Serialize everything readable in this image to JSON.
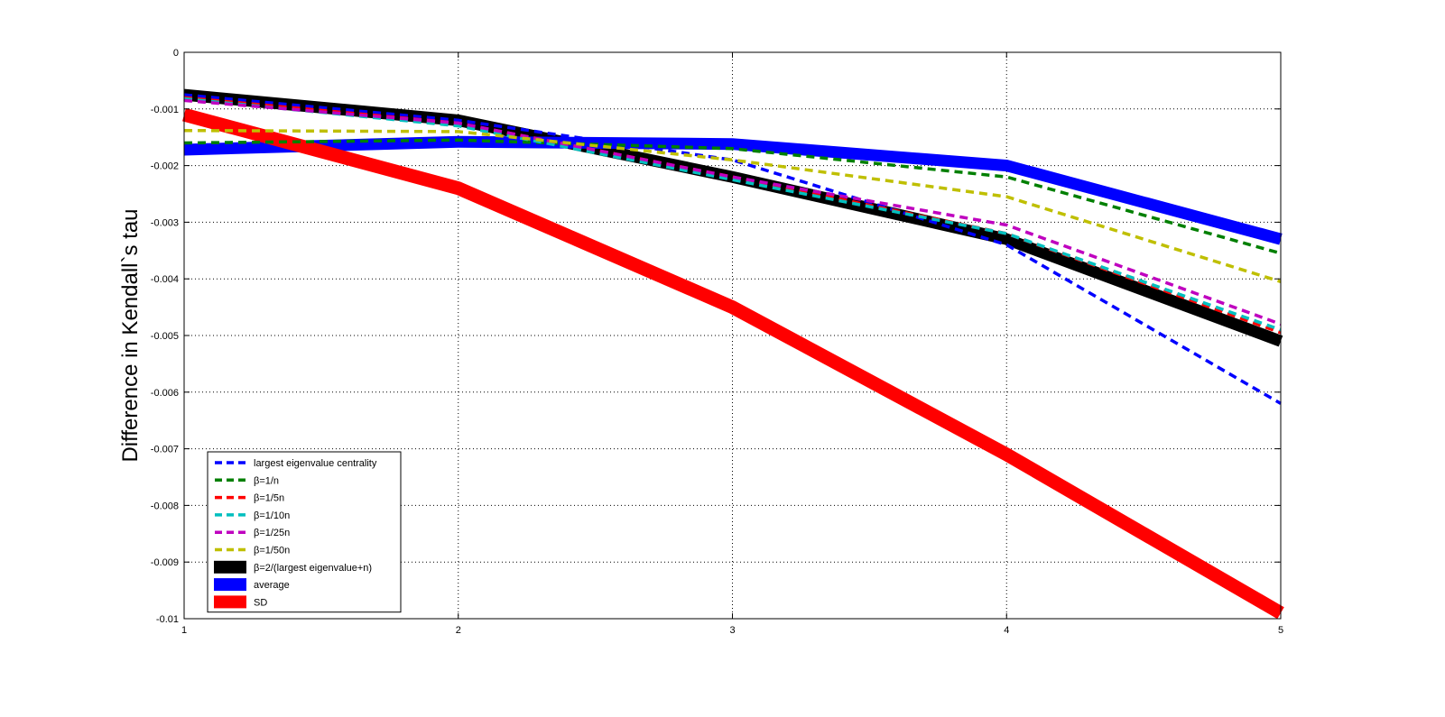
{
  "chart_data": {
    "type": "line",
    "title": "",
    "xlabel": "",
    "ylabel": "Difference in Kendall`s tau",
    "xlim": [
      1,
      5
    ],
    "ylim": [
      -0.01,
      0
    ],
    "grid": true,
    "legend_position": "bottom-left",
    "x": [
      1,
      2,
      3,
      4,
      5
    ],
    "x_ticks": [
      "1",
      "2",
      "3",
      "4",
      "5"
    ],
    "y_ticks": [
      "0",
      "-0.001",
      "-0.002",
      "-0.003",
      "-0.004",
      "-0.005",
      "-0.006",
      "-0.007",
      "-0.008",
      "-0.009",
      "-0.01"
    ],
    "y_tick_values": [
      0,
      -0.001,
      -0.002,
      -0.003,
      -0.004,
      -0.005,
      -0.006,
      -0.007,
      -0.008,
      -0.009,
      -0.01
    ],
    "series": [
      {
        "name": "largest eigenvalue centrality",
        "values": [
          -0.00075,
          -0.0012,
          -0.0019,
          -0.0034,
          -0.0062
        ],
        "color": "#0000ff",
        "style": "dashed"
      },
      {
        "name": "β=1/n",
        "values": [
          -0.0016,
          -0.00155,
          -0.0017,
          -0.0022,
          -0.00355
        ],
        "color": "#007f00",
        "style": "dashed"
      },
      {
        "name": "β=1/5n",
        "values": [
          -0.0008,
          -0.00125,
          -0.0022,
          -0.0032,
          -0.00495
        ],
        "color": "#ff0000",
        "style": "dashed"
      },
      {
        "name": "β=1/10n",
        "values": [
          -0.00082,
          -0.0013,
          -0.00225,
          -0.0032,
          -0.0049
        ],
        "color": "#00bfbf",
        "style": "dashed"
      },
      {
        "name": "β=1/25n",
        "values": [
          -0.00085,
          -0.00125,
          -0.0022,
          -0.00305,
          -0.0048
        ],
        "color": "#bf00bf",
        "style": "dashed"
      },
      {
        "name": "β=1/50n",
        "values": [
          -0.00138,
          -0.0014,
          -0.0019,
          -0.00255,
          -0.00405
        ],
        "color": "#bfbf00",
        "style": "dashed"
      },
      {
        "name": "β=2/(largest eigenvalue+n)",
        "values": [
          -0.00075,
          -0.0012,
          -0.0022,
          -0.0033,
          -0.0051
        ],
        "color": "#000000",
        "style": "thick"
      },
      {
        "name": "average",
        "values": [
          -0.00172,
          -0.00158,
          -0.00162,
          -0.002,
          -0.0033
        ],
        "color": "#0000ff",
        "style": "thick"
      },
      {
        "name": "SD",
        "values": [
          -0.0011,
          -0.0024,
          -0.0045,
          -0.0071,
          -0.0099
        ],
        "color": "#ff0000",
        "style": "thick"
      }
    ]
  }
}
